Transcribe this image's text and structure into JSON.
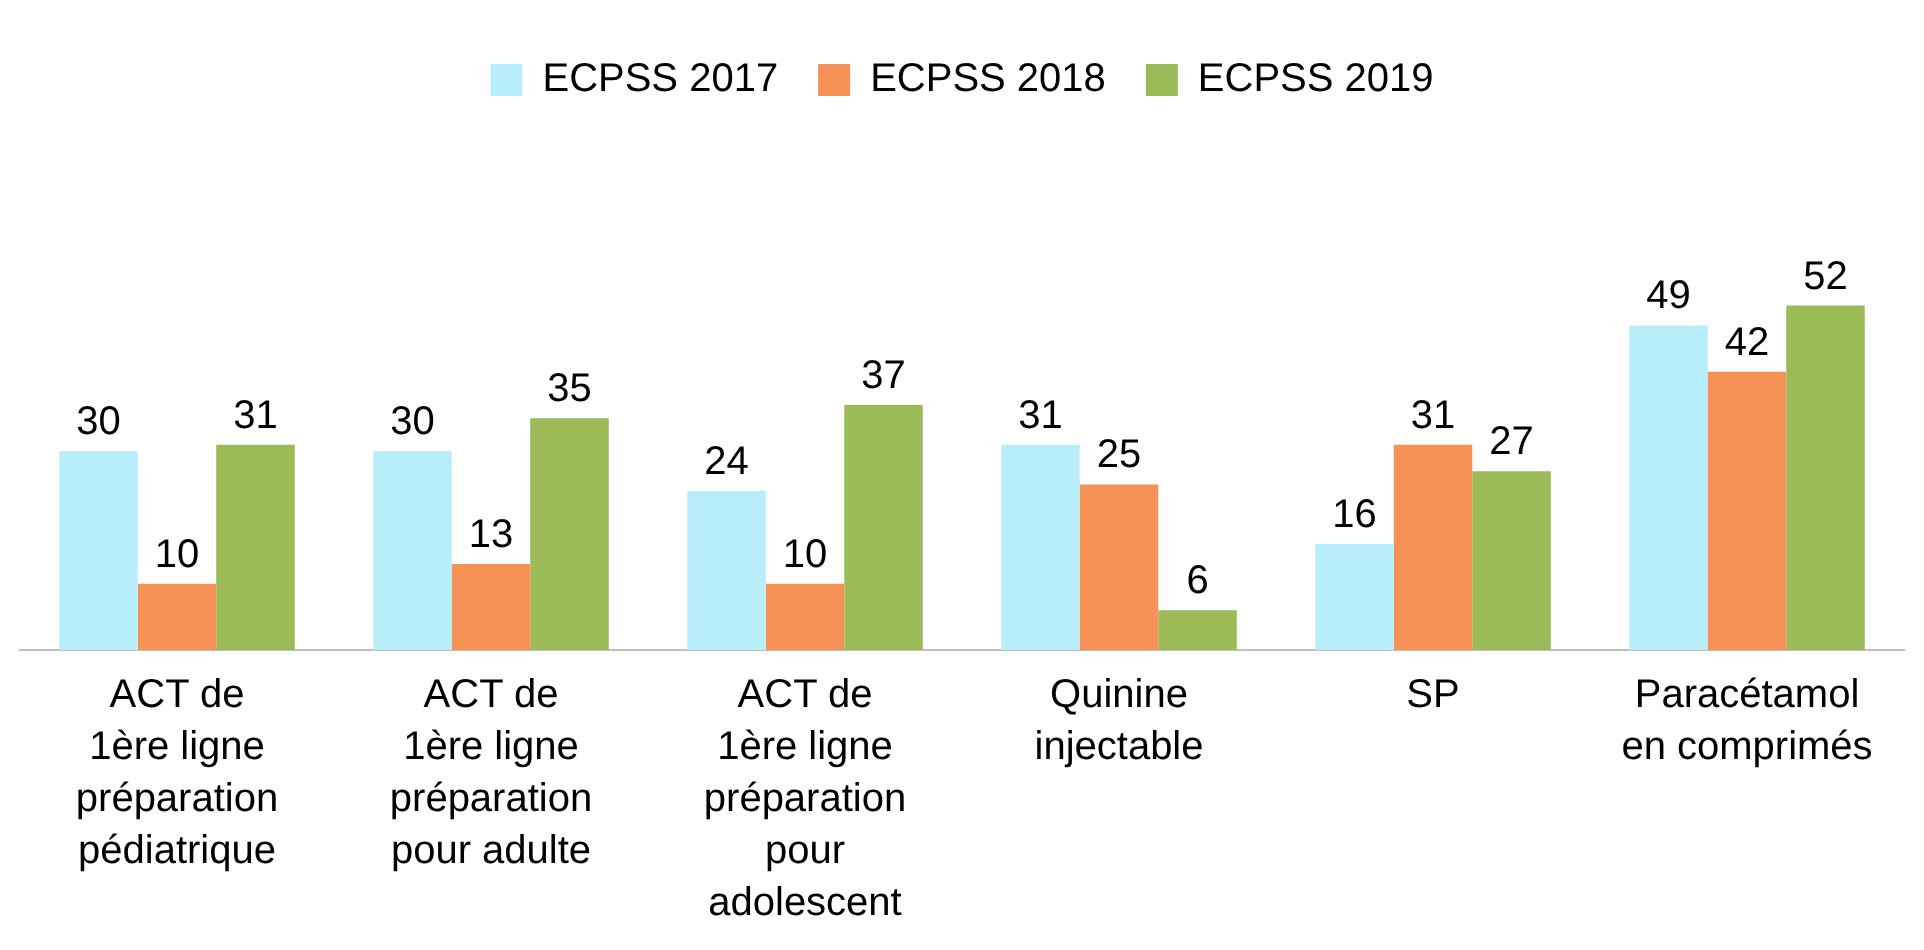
{
  "chart_data": {
    "type": "bar",
    "categories": [
      "ACT de\n1ère ligne\npréparation\npédiatrique",
      "ACT de\n1ère ligne\npréparation\npour adulte",
      "ACT de\n1ère ligne\npréparation\npour\nadolescent",
      "Quinine\ninjectable",
      "SP",
      "Paracétamol\nen comprimés"
    ],
    "series": [
      {
        "name": "ECPSS 2017",
        "color": "#b7eefa",
        "values": [
          30,
          30,
          24,
          31,
          16,
          49
        ]
      },
      {
        "name": "ECPSS 2018",
        "color": "#f79256",
        "values": [
          10,
          13,
          10,
          25,
          31,
          42
        ]
      },
      {
        "name": "ECPSS 2019",
        "color": "#9bbb59",
        "values": [
          31,
          35,
          37,
          6,
          27,
          52
        ]
      }
    ],
    "data_labels": true,
    "legend": "top",
    "grid": false
  }
}
